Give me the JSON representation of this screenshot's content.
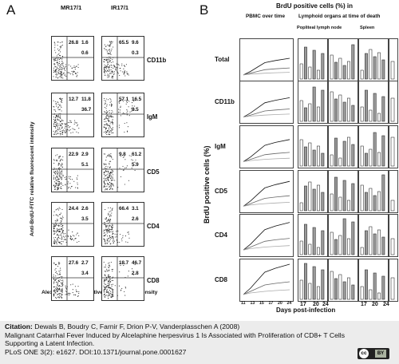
{
  "panel_a": {
    "letter": "A",
    "col1": "MR17/1",
    "col2": "IR17/1",
    "y_axis": "Anti-BrdU-FITC relative fluorescent  intensity",
    "x_axis": "Alexa 633 -GAM relative fluorescent  intensity",
    "rows": [
      {
        "label": "CD11b",
        "left": {
          "ul": "26.8",
          "ur": "1.6",
          "lr": "0.6"
        },
        "right": {
          "ul": "65.5",
          "ur": "9.6",
          "lr": "0.3"
        }
      },
      {
        "label": "IgM",
        "left": {
          "ul": "12.7",
          "ur": "11.8",
          "lr": "36.7"
        },
        "right": {
          "ul": "57.1",
          "ur": "16.5",
          "lr": "8.5"
        }
      },
      {
        "label": "CD5",
        "left": {
          "ul": "22.9",
          "ur": "2.9",
          "lr": "5.1"
        },
        "right": {
          "ul": "9.8",
          "ur": "61.2",
          "lr": "5.9"
        }
      },
      {
        "label": "CD4",
        "left": {
          "ul": "24.4",
          "ur": "2.6",
          "lr": "3.5"
        },
        "right": {
          "ul": "66.4",
          "ur": "3.1",
          "lr": "2.6"
        }
      },
      {
        "label": "CD8",
        "left": {
          "ul": "27.6",
          "ur": "2.7",
          "lr": "3.4"
        },
        "right": {
          "ul": "18.7",
          "ur": "46.7",
          "lr": "2.8"
        }
      }
    ]
  },
  "panel_b": {
    "letter": "B",
    "title": "BrdU positive cells (%) in",
    "pbmc_head": "PBMC over time",
    "lymph_head": "Lymphoid organs at time of death",
    "popliteal": "Popliteal lymph node",
    "spleen": "Spleen",
    "y_label": "BrdU positive cells (%)",
    "x_label": "Days post-infection",
    "rows": [
      "Total",
      "CD11b",
      "IgM",
      "CD5",
      "CD4",
      "CD8"
    ],
    "pbmc_ticks": [
      "11",
      "13",
      "15",
      "17",
      "20",
      "24"
    ],
    "days": [
      "17",
      "20",
      "24",
      "17",
      "20",
      "24"
    ],
    "chart_data": {
      "type": "line",
      "note_values_estimated": true,
      "x": [
        11,
        13,
        15,
        17,
        20,
        24
      ],
      "series": [
        {
          "values": [
            2,
            10,
            20,
            30,
            35,
            40
          ]
        },
        {
          "values": [
            2,
            6,
            10,
            14,
            16,
            18
          ]
        },
        {
          "values": [
            2,
            4,
            5,
            6,
            7,
            8
          ]
        }
      ]
    }
  },
  "caption": {
    "label": "Citation:",
    "line1": "Dewals B, Boudry C, Farnir F, Drion P-V, Vanderplasschen A (2008)",
    "line2": "Malignant Catarrhal Fever Induced by Alcelaphine herpesvirus 1 Is Associated with Proliferation of CD8+ T Cells",
    "line3": "Supporting a Latent Infection.",
    "line4": "PLoS ONE 3(2): e1627. DOI:10.1371/journal.pone.0001627"
  },
  "license": {
    "cc": "cc",
    "by": "BY"
  }
}
